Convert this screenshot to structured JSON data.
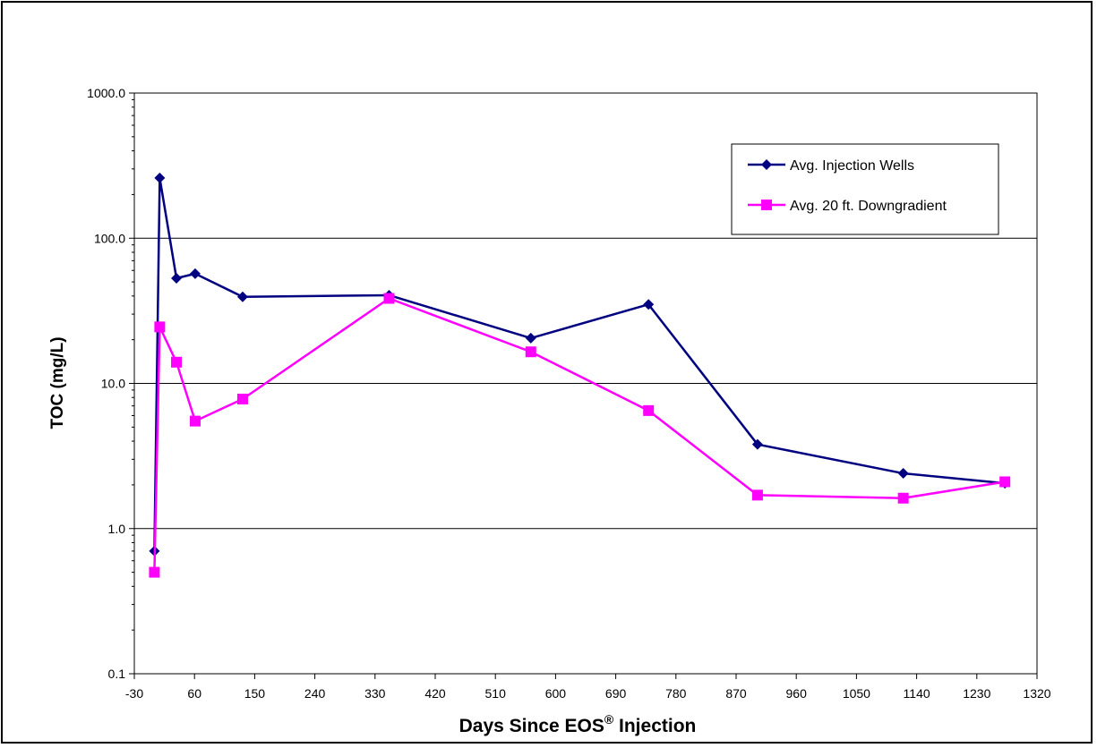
{
  "chart_data": {
    "type": "line",
    "title": "",
    "xlabel": "Days Since EOS",
    "xlabel_superscript": "®",
    "xlabel_suffix": " Injection",
    "ylabel": "TOC (mg/L)",
    "y_scale": "log",
    "ylim": [
      0.1,
      1000
    ],
    "y_ticks": [
      0.1,
      1,
      10,
      100,
      1000
    ],
    "y_tick_labels": [
      "0.1",
      "1.0",
      "10.0",
      "100.0",
      "1000.0"
    ],
    "xlim": [
      -30,
      1320
    ],
    "x_ticks": [
      -30,
      60,
      150,
      240,
      330,
      420,
      510,
      600,
      690,
      780,
      870,
      960,
      1050,
      1140,
      1230,
      1320
    ],
    "x_tick_labels": [
      "-30",
      "60",
      "150",
      "240",
      "330",
      "420",
      "510",
      "600",
      "690",
      "780",
      "870",
      "960",
      "1050",
      "1140",
      "1230",
      "1320"
    ],
    "grid": "horizontal major lines",
    "legend_position": "top-right",
    "series": [
      {
        "name": "Avg. Injection Wells",
        "color": "#000080",
        "marker": "diamond",
        "points": [
          [
            0,
            0.7
          ],
          [
            8,
            260
          ],
          [
            33,
            53
          ],
          [
            61,
            57
          ],
          [
            132,
            39.5
          ],
          [
            351,
            40.5
          ],
          [
            563,
            20.5
          ],
          [
            739,
            35
          ],
          [
            902,
            3.8
          ],
          [
            1120,
            2.4
          ],
          [
            1272,
            2.05
          ]
        ]
      },
      {
        "name": "Avg. 20 ft. Downgradient",
        "color": "#ff00ff",
        "marker": "square",
        "points": [
          [
            0,
            0.5
          ],
          [
            8,
            24.5
          ],
          [
            33,
            14
          ],
          [
            61,
            5.5
          ],
          [
            132,
            7.8
          ],
          [
            351,
            38.5
          ],
          [
            563,
            16.5
          ],
          [
            739,
            6.5
          ],
          [
            902,
            1.7
          ],
          [
            1120,
            1.62
          ],
          [
            1272,
            2.1
          ]
        ]
      }
    ]
  }
}
